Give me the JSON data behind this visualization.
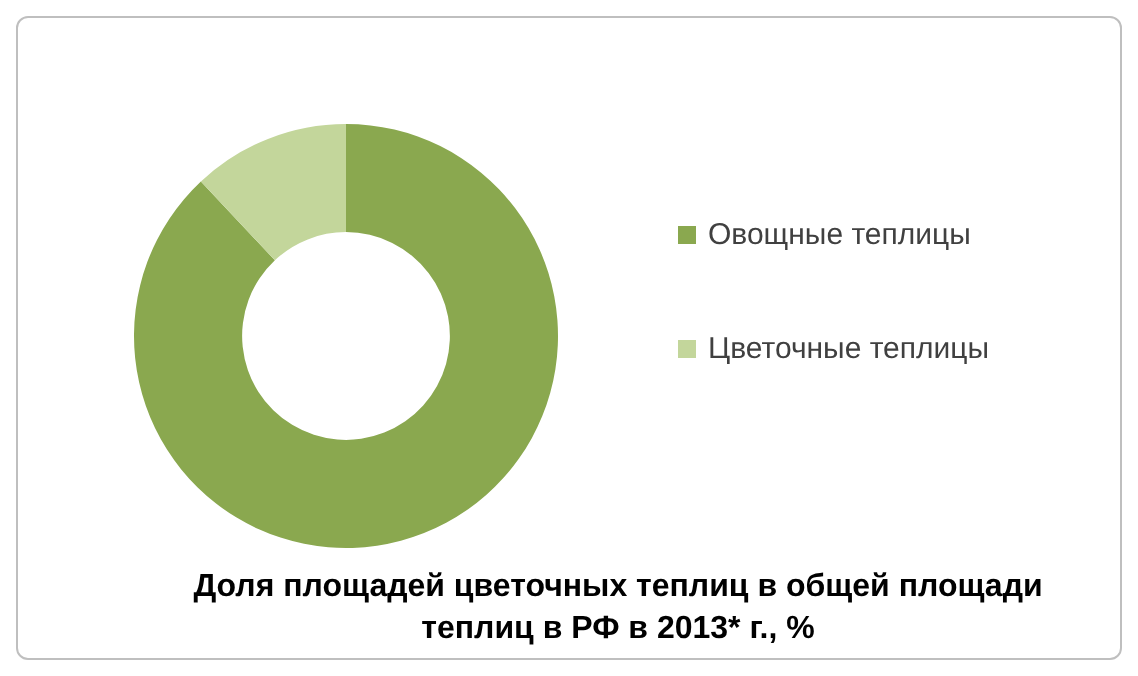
{
  "chart_data": {
    "type": "donut",
    "title": "Доля площадей цветочных теплиц в общей площади теплиц в РФ в 2013* г., %",
    "categories": [
      "Овощные теплицы",
      "Цветочные теплицы"
    ],
    "values": [
      88,
      12
    ],
    "colors": [
      "#8aa84f",
      "#c3d69b"
    ],
    "legend": "right"
  }
}
